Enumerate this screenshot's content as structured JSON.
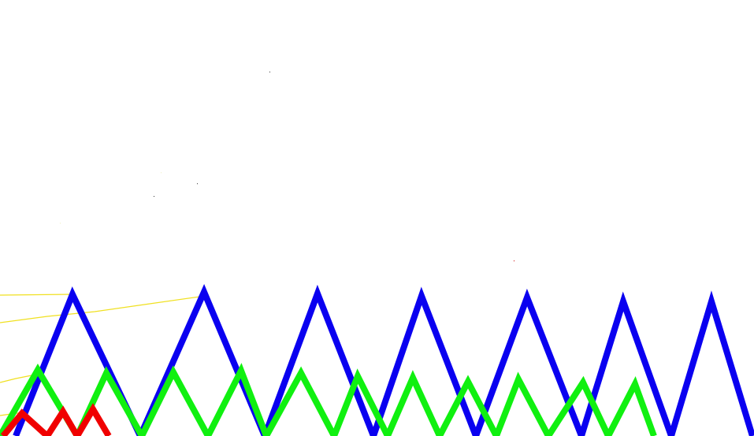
{
  "colors": {
    "background": "#ffffff",
    "blue_zigzag": "#0a00f0",
    "green_zigzag": "#10f010",
    "red_zigzag": "#f00000",
    "yellow_lines": "#f0e020"
  }
}
